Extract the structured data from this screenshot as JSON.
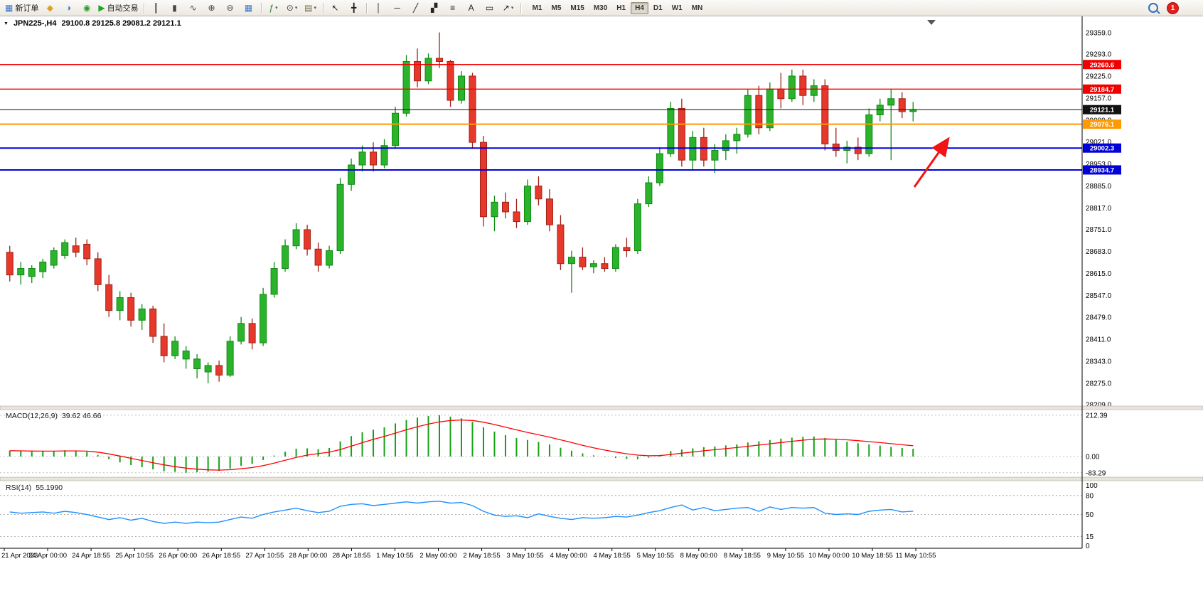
{
  "icons": {
    "collapse_triangle": "▼",
    "dropdown_caret": "▾"
  },
  "toolbar": {
    "badge_count": "1",
    "timeframes": [
      "M1",
      "M5",
      "M15",
      "M30",
      "H1",
      "H4",
      "D1",
      "W1",
      "MN"
    ],
    "active_timeframe": "H4",
    "items": [
      {
        "kind": "button",
        "name": "new-order-button",
        "glyph": "▦",
        "color": "#3c78c8",
        "label": "新订单"
      },
      {
        "kind": "icon",
        "name": "market-watch-icon",
        "glyph": "◆",
        "color": "#d9a520"
      },
      {
        "kind": "icon",
        "name": "data-window-icon",
        "glyph": "◑",
        "color": "#3c78c8"
      },
      {
        "kind": "icon",
        "name": "navigator-icon",
        "glyph": "◉",
        "color": "#2e9e2e"
      },
      {
        "kind": "button",
        "name": "auto-trading-button",
        "glyph": "▶",
        "color": "#1fa51f",
        "label": "自动交易"
      },
      {
        "kind": "sep"
      },
      {
        "kind": "icon",
        "name": "bars-chart-icon",
        "glyph": "║",
        "color": "#444"
      },
      {
        "kind": "icon",
        "name": "candlestick-chart-icon",
        "glyph": "▮",
        "color": "#444"
      },
      {
        "kind": "icon",
        "name": "line-chart-icon",
        "glyph": "∿",
        "color": "#444"
      },
      {
        "kind": "icon",
        "name": "zoom-in-icon",
        "glyph": "⊕",
        "color": "#444"
      },
      {
        "kind": "icon",
        "name": "zoom-out-icon",
        "glyph": "⊖",
        "color": "#444"
      },
      {
        "kind": "icon",
        "name": "tile-windows-icon",
        "glyph": "▦",
        "color": "#3c78c8"
      },
      {
        "kind": "sep"
      },
      {
        "kind": "icon",
        "name": "indicators-icon",
        "glyph": "ƒ",
        "color": "#2e7d32",
        "dd": true
      },
      {
        "kind": "icon",
        "name": "periods-icon",
        "glyph": "⊙",
        "color": "#444",
        "dd": true
      },
      {
        "kind": "icon",
        "name": "templates-icon",
        "glyph": "▤",
        "color": "#7a6a4f",
        "dd": true
      },
      {
        "kind": "sep"
      },
      {
        "kind": "icon",
        "name": "cursor-icon",
        "glyph": "↖",
        "color": "#222"
      },
      {
        "kind": "icon",
        "name": "crosshair-icon",
        "glyph": "╋",
        "color": "#222"
      },
      {
        "kind": "sep"
      },
      {
        "kind": "icon",
        "name": "vertical-line-icon",
        "glyph": "│",
        "color": "#222"
      },
      {
        "kind": "icon",
        "name": "horizontal-line-icon",
        "glyph": "─",
        "color": "#222"
      },
      {
        "kind": "icon",
        "name": "trendline-icon",
        "glyph": "╱",
        "color": "#222"
      },
      {
        "kind": "icon",
        "name": "channel-icon",
        "glyph": "▞",
        "color": "#222"
      },
      {
        "kind": "icon",
        "name": "fibonacci-icon",
        "glyph": "≡",
        "color": "#222"
      },
      {
        "kind": "icon",
        "name": "text-icon",
        "glyph": "A",
        "color": "#222"
      },
      {
        "kind": "icon",
        "name": "label-icon",
        "glyph": "▭",
        "color": "#222"
      },
      {
        "kind": "icon",
        "name": "arrows-icon",
        "glyph": "↗",
        "color": "#222",
        "dd": true
      },
      {
        "kind": "sep"
      }
    ]
  },
  "annotation": {
    "name": "red-arrow",
    "color": "#f01414",
    "direction": "up-right"
  },
  "chart_data": [
    {
      "type": "candlestick",
      "symbol_period": "JPN225-,H4",
      "symbol": "JPN225-",
      "timeframe": "H4",
      "ohlc_display": "29100.8 29125.8 29081.2 29121.1",
      "open": 29100.8,
      "high": 29125.8,
      "low": 29081.2,
      "close": 29121.1,
      "ylim": [
        28209.0,
        29359.0
      ],
      "price_axis": [
        "29359.0",
        "29293.0",
        "29225.0",
        "29157.0",
        "29089.0",
        "29021.0",
        "28953.0",
        "28885.0",
        "28817.0",
        "28751.0",
        "28683.0",
        "28615.0",
        "28547.0",
        "28479.0",
        "28411.0",
        "28343.0",
        "28275.0",
        "28209.0"
      ],
      "time_axis": [
        "21 Apr 2023",
        "24 Apr 00:00",
        "24 Apr 18:55",
        "25 Apr 10:55",
        "26 Apr 00:00",
        "26 Apr 18:55",
        "27 Apr 10:55",
        "28 Apr 00:00",
        "28 Apr 18:55",
        "1 May 10:55",
        "2 May 00:00",
        "2 May 18:55",
        "3 May 10:55",
        "4 May 00:00",
        "4 May 18:55",
        "5 May 10:55",
        "8 May 00:00",
        "8 May 18:55",
        "9 May 10:55",
        "10 May 00:00",
        "10 May 18:55",
        "11 May 10:55"
      ],
      "levels": [
        {
          "price": 29260.6,
          "label": "29260.6",
          "color": "#f20000",
          "width": 1.4
        },
        {
          "price": 29184.7,
          "label": "29184.7",
          "color": "#f20000",
          "width": 1.4
        },
        {
          "price": 29121.1,
          "label": "29121.1",
          "color": "#111111",
          "width": 1
        },
        {
          "price": 29076.1,
          "label": "29076.1",
          "color": "#ff9900",
          "width": 2
        },
        {
          "price": 29002.3,
          "label": "29002.3",
          "color": "#0000d8",
          "width": 2
        },
        {
          "price": 28934.7,
          "label": "28934.7",
          "color": "#0000d8",
          "width": 2
        }
      ],
      "candles": [
        [
          28680,
          28700,
          28590,
          28610
        ],
        [
          28610,
          28650,
          28580,
          28630
        ],
        [
          28605,
          28640,
          28585,
          28630
        ],
        [
          28620,
          28660,
          28600,
          28650
        ],
        [
          28640,
          28695,
          28630,
          28685
        ],
        [
          28670,
          28720,
          28660,
          28710
        ],
        [
          28700,
          28725,
          28665,
          28680
        ],
        [
          28705,
          28720,
          28640,
          28660
        ],
        [
          28660,
          28680,
          28560,
          28580
        ],
        [
          28580,
          28610,
          28480,
          28500
        ],
        [
          28500,
          28560,
          28470,
          28540
        ],
        [
          28540,
          28555,
          28450,
          28470
        ],
        [
          28470,
          28520,
          28440,
          28505
        ],
        [
          28505,
          28515,
          28400,
          28420
        ],
        [
          28420,
          28460,
          28340,
          28360
        ],
        [
          28360,
          28420,
          28350,
          28405
        ],
        [
          28350,
          28390,
          28320,
          28375
        ],
        [
          28320,
          28365,
          28290,
          28350
        ],
        [
          28310,
          28340,
          28275,
          28330
        ],
        [
          28330,
          28345,
          28280,
          28300
        ],
        [
          28300,
          28420,
          28295,
          28405
        ],
        [
          28405,
          28480,
          28395,
          28460
        ],
        [
          28460,
          28475,
          28380,
          28400
        ],
        [
          28400,
          28570,
          28390,
          28550
        ],
        [
          28550,
          28650,
          28540,
          28630
        ],
        [
          28630,
          28720,
          28620,
          28700
        ],
        [
          28700,
          28770,
          28690,
          28750
        ],
        [
          28750,
          28765,
          28670,
          28690
        ],
        [
          28690,
          28710,
          28620,
          28640
        ],
        [
          28640,
          28700,
          28630,
          28685
        ],
        [
          28685,
          28910,
          28675,
          28890
        ],
        [
          28890,
          28970,
          28870,
          28950
        ],
        [
          28950,
          29010,
          28930,
          28990
        ],
        [
          28990,
          29020,
          28930,
          28950
        ],
        [
          28950,
          29030,
          28940,
          29010
        ],
        [
          29010,
          29130,
          29000,
          29110
        ],
        [
          29110,
          29290,
          29100,
          29270
        ],
        [
          29270,
          29310,
          29190,
          29210
        ],
        [
          29210,
          29295,
          29200,
          29280
        ],
        [
          29280,
          29360,
          29250,
          29270
        ],
        [
          29270,
          29275,
          29130,
          29150
        ],
        [
          29150,
          29240,
          29140,
          29225
        ],
        [
          29225,
          29235,
          29000,
          29020
        ],
        [
          29020,
          29040,
          28760,
          28790
        ],
        [
          28790,
          28855,
          28745,
          28835
        ],
        [
          28835,
          28865,
          28785,
          28805
        ],
        [
          28805,
          28845,
          28755,
          28775
        ],
        [
          28775,
          28905,
          28765,
          28885
        ],
        [
          28885,
          28915,
          28825,
          28845
        ],
        [
          28845,
          28875,
          28745,
          28765
        ],
        [
          28765,
          28795,
          28625,
          28645
        ],
        [
          28645,
          28685,
          28555,
          28665
        ],
        [
          28665,
          28695,
          28625,
          28635
        ],
        [
          28635,
          28655,
          28615,
          28645
        ],
        [
          28645,
          28665,
          28620,
          28630
        ],
        [
          28630,
          28705,
          28620,
          28695
        ],
        [
          28695,
          28725,
          28665,
          28685
        ],
        [
          28685,
          28845,
          28675,
          28830
        ],
        [
          28830,
          28915,
          28820,
          28895
        ],
        [
          28895,
          29005,
          28885,
          28985
        ],
        [
          28985,
          29145,
          28975,
          29125
        ],
        [
          29125,
          29155,
          28945,
          28965
        ],
        [
          28965,
          29055,
          28935,
          29035
        ],
        [
          29035,
          29065,
          28945,
          28965
        ],
        [
          28965,
          29015,
          28925,
          28995
        ],
        [
          28995,
          29045,
          28965,
          29025
        ],
        [
          29025,
          29065,
          28985,
          29045
        ],
        [
          29045,
          29185,
          29035,
          29165
        ],
        [
          29165,
          29195,
          29045,
          29065
        ],
        [
          29065,
          29205,
          29055,
          29185
        ],
        [
          29185,
          29235,
          29125,
          29155
        ],
        [
          29155,
          29245,
          29145,
          29225
        ],
        [
          29225,
          29245,
          29135,
          29165
        ],
        [
          29165,
          29215,
          29145,
          29195
        ],
        [
          29195,
          29215,
          28995,
          29015
        ],
        [
          29015,
          29065,
          28975,
          28995
        ],
        [
          28995,
          29025,
          28955,
          29005
        ],
        [
          29005,
          29035,
          28965,
          28985
        ],
        [
          28985,
          29125,
          28975,
          29105
        ],
        [
          29105,
          29155,
          29085,
          29135
        ],
        [
          29135,
          29185,
          28965,
          29155
        ],
        [
          29155,
          29175,
          29095,
          29115
        ],
        [
          29115,
          29145,
          29085,
          29121.1
        ]
      ]
    },
    {
      "type": "bar",
      "title": "MACD(12,26,9)",
      "values_display": "39.62 46.66",
      "macd_last": 39.62,
      "signal_last": 46.66,
      "axis": [
        "212.39",
        "0.00",
        "-83.29"
      ],
      "ylim": [
        -95,
        230
      ],
      "bar_color": "#17a017",
      "signal_color": "#ff0000",
      "values": [
        30,
        27,
        25,
        26,
        28,
        32,
        29,
        24,
        8,
        -14,
        -30,
        -44,
        -55,
        -66,
        -76,
        -79,
        -83,
        -81,
        -78,
        -74,
        -62,
        -48,
        -38,
        -18,
        5,
        25,
        40,
        42,
        38,
        44,
        78,
        105,
        125,
        138,
        150,
        170,
        188,
        200,
        208,
        212,
        205,
        196,
        178,
        150,
        128,
        110,
        95,
        85,
        75,
        62,
        45,
        30,
        16,
        6,
        -2,
        -8,
        -12,
        -14,
        -6,
        8,
        28,
        36,
        42,
        48,
        52,
        57,
        62,
        72,
        78,
        85,
        92,
        97,
        101,
        103,
        95,
        86,
        76,
        68,
        62,
        56,
        50,
        44,
        39.62
      ]
    },
    {
      "type": "line",
      "title": "RSI(14)",
      "value_display": "55.1990",
      "last": 55.199,
      "levels": [
        80,
        50,
        15
      ],
      "axis": [
        "100",
        "80",
        "50",
        "15",
        "0"
      ],
      "ylim": [
        0,
        100
      ],
      "line_color": "#1e90ff",
      "values": [
        54,
        52,
        53,
        54,
        52,
        55,
        53,
        50,
        46,
        42,
        45,
        41,
        44,
        39,
        36,
        38,
        36,
        38,
        37,
        38,
        42,
        46,
        44,
        50,
        54,
        57,
        60,
        56,
        53,
        55,
        63,
        66,
        67,
        64,
        66,
        68,
        70,
        68,
        70,
        71,
        68,
        69,
        64,
        55,
        49,
        47,
        48,
        45,
        51,
        47,
        44,
        42,
        45,
        44,
        45,
        47,
        46,
        49,
        53,
        56,
        61,
        65,
        57,
        61,
        56,
        58,
        60,
        61,
        55,
        62,
        58,
        61,
        60,
        61,
        52,
        50,
        51,
        50,
        55,
        57,
        58,
        54,
        55.2
      ]
    }
  ]
}
